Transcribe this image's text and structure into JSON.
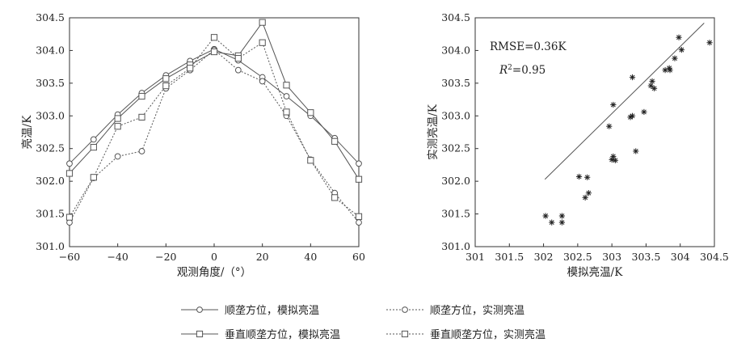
{
  "chart_data": [
    {
      "type": "line",
      "xlabel": "观测角度/（°）",
      "ylabel": "亮温/K",
      "xlim": [
        -60,
        60
      ],
      "ylim": [
        301.0,
        304.5
      ],
      "xticks": [
        "−60",
        "−40",
        "−20",
        "0",
        "20",
        "40",
        "60"
      ],
      "yticks": [
        "301.0",
        "301.5",
        "302.0",
        "302.5",
        "303.0",
        "303.5",
        "304.0",
        "304.5"
      ],
      "grid": false,
      "series": [
        {
          "name": "顺垄方位，模拟亮温",
          "marker": "circle",
          "line": "solid",
          "x": [
            -60,
            -50,
            -40,
            -30,
            -20,
            -10,
            0,
            10,
            20,
            30,
            40,
            50,
            60
          ],
          "y": [
            302.27,
            302.64,
            303.02,
            303.35,
            303.62,
            303.84,
            304.02,
            303.85,
            303.59,
            303.3,
            303.0,
            302.66,
            302.27
          ]
        },
        {
          "name": "顺垄方位，实测亮温",
          "marker": "circle",
          "line": "dotted",
          "x": [
            -60,
            -50,
            -40,
            -30,
            -20,
            -10,
            0,
            10,
            20,
            30,
            40,
            50,
            60
          ],
          "y": [
            301.37,
            302.05,
            302.38,
            302.46,
            303.42,
            303.7,
            304.01,
            303.7,
            303.53,
            303.0,
            302.33,
            301.82,
            301.37
          ]
        },
        {
          "name": "垂直顺垄方位，模拟亮温",
          "marker": "square",
          "line": "solid",
          "x": [
            -60,
            -50,
            -40,
            -30,
            -20,
            -10,
            0,
            10,
            20,
            30,
            40,
            50,
            60
          ],
          "y": [
            302.12,
            302.52,
            302.96,
            303.3,
            303.57,
            303.78,
            303.98,
            303.92,
            304.43,
            303.47,
            303.05,
            302.61,
            302.03
          ]
        },
        {
          "name": "垂直顺垄方位，实测亮温",
          "marker": "square",
          "line": "dotted",
          "x": [
            -60,
            -50,
            -40,
            -30,
            -20,
            -10,
            0,
            10,
            20,
            30,
            40,
            50,
            60
          ],
          "y": [
            301.45,
            302.06,
            302.84,
            302.98,
            303.46,
            303.73,
            304.2,
            303.88,
            304.12,
            303.06,
            302.32,
            301.75,
            301.46
          ]
        }
      ],
      "legend": {
        "placement": "bottom",
        "entries": [
          "顺垄方位，模拟亮温",
          "顺垄方位，实测亮温",
          "垂直顺垄方位，模拟亮温",
          "垂直顺垄方位，实测亮温"
        ]
      }
    },
    {
      "type": "scatter",
      "xlabel": "模拟亮温/K",
      "ylabel": "实测亮温/K",
      "xlim": [
        301,
        304.5
      ],
      "ylim": [
        301.0,
        304.5
      ],
      "xticks": [
        "301",
        "301.5",
        "302",
        "302.5",
        "303",
        "303.5",
        "304",
        "304.5"
      ],
      "yticks": [
        "301.0",
        "301.5",
        "302.0",
        "302.5",
        "303.0",
        "303.5",
        "304.0",
        "304.5"
      ],
      "grid": false,
      "marker": "asterisk",
      "annotations": {
        "rmse": "RMSE=0.36K",
        "r2_symbol": "R",
        "r2_superscript": "2",
        "r2_value": "=0.95"
      },
      "fit_line": {
        "x": [
          302.02,
          304.35
        ],
        "y": [
          302.03,
          304.42
        ]
      },
      "points": [
        [
          302.03,
          301.47
        ],
        [
          302.12,
          301.37
        ],
        [
          302.27,
          301.37
        ],
        [
          302.27,
          301.47
        ],
        [
          302.52,
          302.07
        ],
        [
          302.61,
          301.75
        ],
        [
          302.64,
          302.06
        ],
        [
          302.66,
          301.82
        ],
        [
          302.96,
          302.84
        ],
        [
          303.0,
          302.33
        ],
        [
          303.02,
          302.38
        ],
        [
          303.02,
          303.17
        ],
        [
          303.05,
          302.32
        ],
        [
          303.27,
          302.98
        ],
        [
          303.3,
          303.0
        ],
        [
          303.3,
          303.59
        ],
        [
          303.35,
          302.46
        ],
        [
          303.47,
          303.06
        ],
        [
          303.57,
          303.46
        ],
        [
          303.59,
          303.53
        ],
        [
          303.62,
          303.42
        ],
        [
          303.78,
          303.7
        ],
        [
          303.84,
          303.73
        ],
        [
          303.85,
          303.7
        ],
        [
          303.92,
          303.88
        ],
        [
          303.98,
          304.2
        ],
        [
          304.02,
          304.01
        ],
        [
          304.43,
          304.12
        ]
      ]
    }
  ]
}
